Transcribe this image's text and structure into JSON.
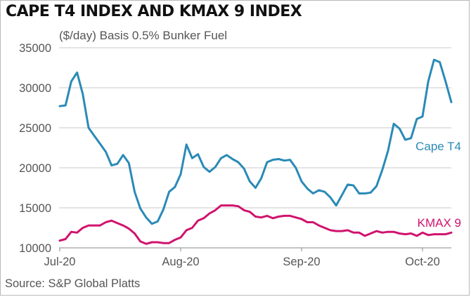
{
  "header": {
    "title": "CAPE T4 INDEX AND KMAX 9 INDEX",
    "subtitle": "($/day) Basis 0.5% Bunker Fuel"
  },
  "footer": {
    "source": "Source: S&P Global Platts"
  },
  "colors": {
    "cape": "#2a8ab6",
    "kmax": "#d0136e",
    "grid": "#c8c8c8",
    "axis_text": "#555555"
  },
  "chart_data": {
    "type": "line",
    "title": "CAPE T4 INDEX AND KMAX 9 INDEX",
    "subtitle": "($/day) Basis 0.5% Bunker Fuel",
    "xlabel": "",
    "ylabel": "",
    "ylim": [
      10000,
      35000
    ],
    "yticks": [
      10000,
      15000,
      20000,
      25000,
      30000,
      35000
    ],
    "ytick_labels": [
      "10000",
      "15000",
      "20000",
      "25000",
      "30000",
      "35000"
    ],
    "xticks": [
      {
        "label": "Jul-20",
        "index": 0
      },
      {
        "label": "Aug-20",
        "index": 21
      },
      {
        "label": "Sep-20",
        "index": 42
      },
      {
        "label": "Oct-20",
        "index": 63
      }
    ],
    "grid": true,
    "series": [
      {
        "name": "Cape T4",
        "label_position": "right-end",
        "values": [
          27700,
          27800,
          30800,
          31900,
          29200,
          25000,
          24000,
          23000,
          22000,
          20300,
          20500,
          21600,
          20600,
          17000,
          14900,
          13800,
          13000,
          13300,
          14800,
          17000,
          17600,
          19200,
          22900,
          21200,
          21700,
          20100,
          19500,
          20100,
          21200,
          21600,
          21100,
          20700,
          19900,
          18300,
          17500,
          18700,
          20700,
          21000,
          21100,
          20900,
          21000,
          20000,
          18300,
          17400,
          16800,
          17200,
          17000,
          16300,
          15300,
          16600,
          17900,
          17800,
          16800,
          16800,
          16900,
          17700,
          19700,
          22100,
          25500,
          24900,
          23500,
          23700,
          26100,
          26400,
          30800,
          33500,
          33200,
          30800,
          28200
        ]
      },
      {
        "name": "KMAX 9",
        "label_position": "right-end",
        "values": [
          10900,
          11100,
          12000,
          11900,
          12500,
          12800,
          12800,
          12800,
          13200,
          13400,
          13100,
          12800,
          12400,
          11800,
          10800,
          10500,
          10700,
          10700,
          10600,
          10600,
          11000,
          11300,
          12200,
          12500,
          13400,
          13700,
          14300,
          14700,
          15300,
          15300,
          15300,
          15200,
          14700,
          14500,
          13900,
          13800,
          14000,
          13700,
          13900,
          14000,
          14000,
          13800,
          13600,
          13200,
          13200,
          12800,
          12500,
          12200,
          12100,
          12100,
          12200,
          11900,
          11900,
          11500,
          11800,
          12100,
          11900,
          12000,
          12000,
          11800,
          11700,
          11800,
          11500,
          11900,
          11600,
          11700,
          11700,
          11700,
          11900
        ]
      }
    ]
  }
}
